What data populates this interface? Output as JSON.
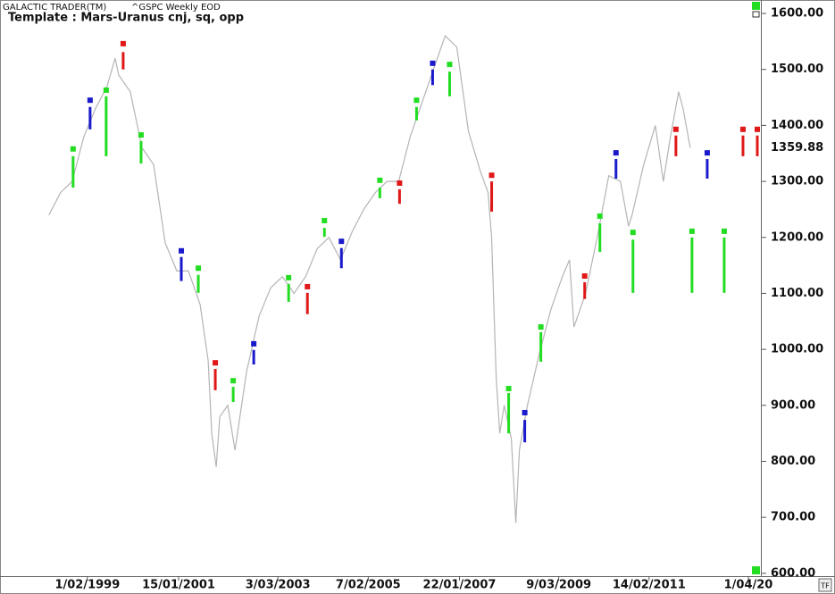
{
  "header": {
    "app": "GALACTIC TRADER(TM)",
    "symbol": "^GSPC Weekly EOD"
  },
  "toolbar": {
    "tf": "TF"
  },
  "chart_data": {
    "type": "line",
    "title": "Template : Mars-Uranus cnj, sq, opp",
    "x": [
      "1998-04-06",
      "1998-07-06",
      "1998-10-05",
      "1999-01-04",
      "1999-04-05",
      "1999-07-05",
      "1999-09-06",
      "1999-10-04",
      "2000-01-03",
      "2000-04-03",
      "2000-07-03",
      "2000-10-02",
      "2001-01-01",
      "2001-04-02",
      "2001-07-02",
      "2001-09-03",
      "2001-10-01",
      "2001-11-05",
      "2001-12-03",
      "2002-02-04",
      "2002-04-01",
      "2002-07-01",
      "2002-10-07",
      "2003-01-06",
      "2003-04-07",
      "2003-07-07",
      "2003-10-06",
      "2004-01-05",
      "2004-04-05",
      "2004-07-05",
      "2004-10-04",
      "2005-01-03",
      "2005-04-04",
      "2005-07-04",
      "2005-10-03",
      "2006-01-02",
      "2006-04-03",
      "2006-07-03",
      "2006-10-02",
      "2007-01-01",
      "2007-04-02",
      "2007-07-02",
      "2007-09-03",
      "2007-10-01",
      "2007-11-05",
      "2007-12-03",
      "2008-01-07",
      "2008-03-03",
      "2008-04-07",
      "2008-05-05",
      "2008-07-07",
      "2008-10-06",
      "2009-01-05",
      "2009-04-06",
      "2009-06-01",
      "2009-07-06",
      "2009-10-05",
      "2010-01-04",
      "2010-04-05",
      "2010-07-05",
      "2010-09-06",
      "2010-10-04",
      "2011-01-03",
      "2011-04-04",
      "2011-06-06",
      "2011-08-01",
      "2011-10-03",
      "2011-11-07",
      "2012-01-02"
    ],
    "series": [
      {
        "color": "#b4b4b4",
        "values": [
          1240,
          1280,
          1300,
          1380,
          1430,
          1470,
          1520,
          1490,
          1460,
          1360,
          1330,
          1190,
          1140,
          1140,
          1080,
          980,
          850,
          790,
          880,
          900,
          820,
          960,
          1060,
          1110,
          1130,
          1100,
          1130,
          1180,
          1200,
          1160,
          1210,
          1250,
          1280,
          1300,
          1300,
          1380,
          1440,
          1500,
          1560,
          1540,
          1390,
          1320,
          1280,
          1200,
          950,
          850,
          900,
          840,
          690,
          820,
          900,
          990,
          1070,
          1130,
          1160,
          1040,
          1100,
          1200,
          1310,
          1300,
          1220,
          1240,
          1330,
          1400,
          1300,
          1380,
          1460,
          1430,
          1360
        ]
      }
    ],
    "signals": [
      {
        "x": "1998-10-12",
        "color": "#22dd22",
        "marker": 1358,
        "range": [
          1289,
          1345
        ]
      },
      {
        "x": "1999-02-22",
        "color": "#1a1acc",
        "marker": 1445,
        "range": [
          1393,
          1433
        ]
      },
      {
        "x": "1999-06-28",
        "color": "#22dd22",
        "marker": 1463,
        "range": [
          1345,
          1452
        ]
      },
      {
        "x": "1999-11-08",
        "color": "#e01818",
        "marker": 1546,
        "range": [
          1500,
          1531
        ]
      },
      {
        "x": "2000-03-27",
        "color": "#22dd22",
        "marker": 1383,
        "range": [
          1332,
          1372
        ]
      },
      {
        "x": "2001-02-05",
        "color": "#1a1acc",
        "marker": 1176,
        "range": [
          1122,
          1165
        ]
      },
      {
        "x": "2001-06-18",
        "color": "#22dd22",
        "marker": 1145,
        "range": [
          1101,
          1133
        ]
      },
      {
        "x": "2001-10-29",
        "color": "#e01818",
        "marker": 976,
        "range": [
          927,
          965
        ]
      },
      {
        "x": "2002-03-18",
        "color": "#22dd22",
        "marker": 944,
        "range": [
          906,
          933
        ]
      },
      {
        "x": "2002-08-26",
        "color": "#1a1acc",
        "marker": 1010,
        "range": [
          973,
          999
        ]
      },
      {
        "x": "2003-05-26",
        "color": "#22dd22",
        "marker": 1128,
        "range": [
          1085,
          1117
        ]
      },
      {
        "x": "2003-10-20",
        "color": "#e01818",
        "marker": 1112,
        "range": [
          1063,
          1101
        ]
      },
      {
        "x": "2004-03-01",
        "color": "#22dd22",
        "marker": 1230,
        "range": [
          1201,
          1217
        ]
      },
      {
        "x": "2004-07-12",
        "color": "#1a1acc",
        "marker": 1193,
        "range": [
          1145,
          1181
        ]
      },
      {
        "x": "2005-05-09",
        "color": "#22dd22",
        "marker": 1302,
        "range": [
          1270,
          1289
        ]
      },
      {
        "x": "2005-10-10",
        "color": "#e01818",
        "marker": 1297,
        "range": [
          1260,
          1286
        ]
      },
      {
        "x": "2006-02-20",
        "color": "#22dd22",
        "marker": 1445,
        "range": [
          1409,
          1433
        ]
      },
      {
        "x": "2006-06-26",
        "color": "#1a1acc",
        "marker": 1511,
        "range": [
          1472,
          1500
        ]
      },
      {
        "x": "2006-11-06",
        "color": "#22dd22",
        "marker": 1509,
        "range": [
          1452,
          1496
        ]
      },
      {
        "x": "2007-10-01",
        "color": "#e01818",
        "marker": 1311,
        "range": [
          1246,
          1300
        ]
      },
      {
        "x": "2008-02-11",
        "color": "#22dd22",
        "marker": 930,
        "range": [
          850,
          922
        ]
      },
      {
        "x": "2008-06-16",
        "color": "#1a1acc",
        "marker": 887,
        "range": [
          834,
          874
        ]
      },
      {
        "x": "2008-10-20",
        "color": "#22dd22",
        "marker": 1040,
        "range": [
          978,
          1031
        ]
      },
      {
        "x": "2009-09-28",
        "color": "#e01818",
        "marker": 1131,
        "range": [
          1090,
          1120
        ]
      },
      {
        "x": "2010-01-25",
        "color": "#22dd22",
        "marker": 1238,
        "range": [
          1174,
          1225
        ]
      },
      {
        "x": "2010-05-31",
        "color": "#1a1acc",
        "marker": 1351,
        "range": [
          1305,
          1340
        ]
      },
      {
        "x": "2010-10-11",
        "color": "#22dd22",
        "marker": 1209,
        "range": [
          1101,
          1196
        ]
      },
      {
        "x": "2011-09-12",
        "color": "#e01818",
        "marker": 1393,
        "range": [
          1345,
          1382
        ]
      },
      {
        "x": "2012-01-16",
        "color": "#22dd22",
        "marker": 1211,
        "range": [
          1101,
          1200
        ]
      },
      {
        "x": "2012-05-14",
        "color": "#1a1acc",
        "marker": 1351,
        "range": [
          1305,
          1340
        ]
      },
      {
        "x": "2012-09-24",
        "color": "#22dd22",
        "marker": 1211,
        "range": [
          1101,
          1200
        ]
      },
      {
        "x": "2013-02-18",
        "color": "#e01818",
        "marker": 1393,
        "range": [
          1345,
          1382
        ]
      },
      {
        "x": "2013-06-10",
        "color": "#e01818",
        "marker": 1393,
        "range": [
          1345,
          1382
        ]
      }
    ],
    "last_value": 1359.88,
    "xlim": [
      "1997-03-26",
      "2013-07-08"
    ],
    "ylim": [
      595,
      1624
    ],
    "xticks": [
      {
        "value": "1999-02-01",
        "label": "1/02/1999"
      },
      {
        "value": "2001-01-15",
        "label": "15/01/2001"
      },
      {
        "value": "2003-03-03",
        "label": "3/03/2003"
      },
      {
        "value": "2005-02-07",
        "label": "7/02/2005"
      },
      {
        "value": "2007-01-22",
        "label": "22/01/2007"
      },
      {
        "value": "2009-03-09",
        "label": "9/03/2009"
      },
      {
        "value": "2011-02-14",
        "label": "14/02/2011"
      },
      {
        "value": "2013-04-01",
        "label": "1/04/20"
      }
    ],
    "yticks": [
      {
        "value": 600,
        "label": "600.00"
      },
      {
        "value": 700,
        "label": "700.00"
      },
      {
        "value": 800,
        "label": "800.00"
      },
      {
        "value": 900,
        "label": "900.00"
      },
      {
        "value": 1000,
        "label": "1000.00"
      },
      {
        "value": 1100,
        "label": "1100.00"
      },
      {
        "value": 1200,
        "label": "1200.00"
      },
      {
        "value": 1300,
        "label": "1300.00"
      },
      {
        "value": 1400,
        "label": "1400.00"
      },
      {
        "value": 1500,
        "label": "1500.00"
      },
      {
        "value": 1600,
        "label": "1600.00"
      }
    ]
  }
}
